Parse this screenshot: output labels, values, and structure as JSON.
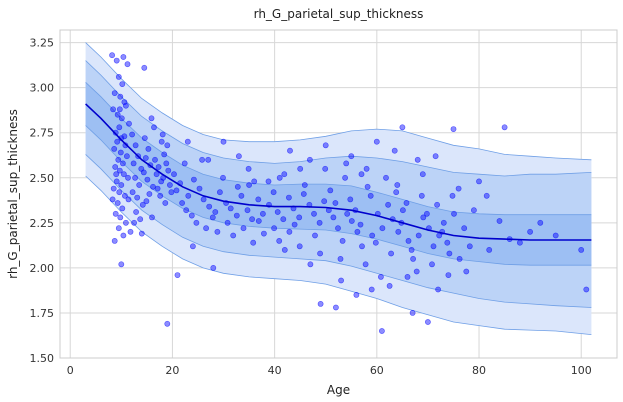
{
  "chart_data": {
    "type": "scatter",
    "title": "rh_G_parietal_sup_thickness",
    "xlabel": "Age",
    "ylabel": "rh_G_parietal_sup_thickness",
    "xlim": [
      -2,
      107
    ],
    "ylim": [
      1.5,
      3.32
    ],
    "x_ticks": [
      0,
      20,
      40,
      60,
      80,
      100
    ],
    "y_ticks": [
      1.5,
      1.75,
      2.0,
      2.25,
      2.5,
      2.75,
      3.0,
      3.25
    ],
    "y_tick_labels": [
      "1.50",
      "1.75",
      "2.00",
      "2.25",
      "2.50",
      "2.75",
      "3.00",
      "3.25"
    ],
    "grid": true,
    "colors": {
      "points": "#0000ff",
      "median_line": "#0000cc",
      "band_outer": "#dbe6fb",
      "band_middle": "#bcd3f7",
      "band_inner": "#9dbff3",
      "band_edge": "#6f9fe6"
    },
    "centile_curves": {
      "x": [
        3,
        6,
        10,
        14,
        18,
        22,
        26,
        30,
        35,
        40,
        45,
        50,
        55,
        60,
        65,
        70,
        75,
        80,
        85,
        90,
        95,
        102
      ],
      "p50": [
        2.91,
        2.83,
        2.71,
        2.6,
        2.52,
        2.45,
        2.4,
        2.37,
        2.35,
        2.34,
        2.34,
        2.335,
        2.32,
        2.29,
        2.25,
        2.21,
        2.18,
        2.165,
        2.16,
        2.155,
        2.155,
        2.155
      ],
      "p25": [
        2.79,
        2.71,
        2.59,
        2.48,
        2.4,
        2.33,
        2.28,
        2.25,
        2.23,
        2.22,
        2.215,
        2.21,
        2.19,
        2.16,
        2.12,
        2.08,
        2.05,
        2.035,
        2.02,
        2.015,
        2.015,
        2.015
      ],
      "p75": [
        3.03,
        2.95,
        2.83,
        2.72,
        2.64,
        2.57,
        2.52,
        2.49,
        2.47,
        2.46,
        2.465,
        2.465,
        2.455,
        2.42,
        2.38,
        2.34,
        2.31,
        2.3,
        2.295,
        2.295,
        2.295,
        2.295
      ],
      "p05": [
        2.63,
        2.55,
        2.43,
        2.32,
        2.24,
        2.17,
        2.12,
        2.09,
        2.07,
        2.06,
        2.05,
        2.04,
        2.01,
        1.97,
        1.93,
        1.89,
        1.86,
        1.83,
        1.81,
        1.8,
        1.79,
        1.78
      ],
      "p95": [
        3.15,
        3.07,
        2.95,
        2.84,
        2.76,
        2.69,
        2.64,
        2.61,
        2.59,
        2.58,
        2.59,
        2.61,
        2.62,
        2.61,
        2.59,
        2.56,
        2.53,
        2.52,
        2.51,
        2.52,
        2.52,
        2.53
      ],
      "p01": [
        2.51,
        2.43,
        2.31,
        2.2,
        2.12,
        2.05,
        2.0,
        1.97,
        1.95,
        1.94,
        1.93,
        1.91,
        1.87,
        1.83,
        1.78,
        1.74,
        1.7,
        1.68,
        1.66,
        1.655,
        1.65,
        1.63
      ],
      "p99": [
        3.25,
        3.17,
        3.05,
        2.94,
        2.86,
        2.79,
        2.74,
        2.71,
        2.7,
        2.7,
        2.71,
        2.73,
        2.76,
        2.77,
        2.76,
        2.72,
        2.68,
        2.66,
        2.63,
        2.62,
        2.61,
        2.6
      ]
    },
    "points": [
      [
        8.2,
        3.18
      ],
      [
        9.1,
        3.15
      ],
      [
        10.4,
        3.17
      ],
      [
        11.2,
        3.13
      ],
      [
        14.5,
        3.11
      ],
      [
        9.5,
        3.06
      ],
      [
        10.2,
        3.02
      ],
      [
        8.7,
        2.97
      ],
      [
        9.8,
        2.95
      ],
      [
        10.9,
        2.9
      ],
      [
        8.4,
        2.88
      ],
      [
        9.3,
        2.85
      ],
      [
        10.1,
        2.83
      ],
      [
        11.5,
        2.8
      ],
      [
        9.6,
        2.78
      ],
      [
        8.9,
        2.75
      ],
      [
        10.6,
        2.73
      ],
      [
        9.2,
        2.7
      ],
      [
        10.8,
        2.68
      ],
      [
        8.6,
        2.66
      ],
      [
        9.9,
        2.64
      ],
      [
        11.1,
        2.62
      ],
      [
        9.4,
        2.6
      ],
      [
        10.3,
        2.58
      ],
      [
        8.8,
        2.56
      ],
      [
        9.7,
        2.54
      ],
      [
        10.5,
        2.52
      ],
      [
        11.3,
        2.5
      ],
      [
        9.1,
        2.48
      ],
      [
        10.0,
        2.46
      ],
      [
        8.5,
        2.44
      ],
      [
        9.6,
        2.42
      ],
      [
        10.7,
        2.4
      ],
      [
        11.4,
        2.38
      ],
      [
        9.3,
        2.36
      ],
      [
        10.2,
        2.33
      ],
      [
        8.9,
        2.3
      ],
      [
        9.8,
        2.28
      ],
      [
        10.9,
        2.25
      ],
      [
        9.5,
        2.22
      ],
      [
        10.4,
        2.18
      ],
      [
        8.7,
        2.15
      ],
      [
        12.1,
        2.74
      ],
      [
        12.8,
        2.68
      ],
      [
        13.3,
        2.62
      ],
      [
        12.4,
        2.58
      ],
      [
        13.9,
        2.55
      ],
      [
        12.7,
        2.5
      ],
      [
        13.5,
        2.46
      ],
      [
        12.2,
        2.42
      ],
      [
        13.1,
        2.39
      ],
      [
        14.2,
        2.35
      ],
      [
        12.9,
        2.31
      ],
      [
        13.7,
        2.27
      ],
      [
        14.6,
        2.72
      ],
      [
        15.3,
        2.66
      ],
      [
        14.8,
        2.61
      ],
      [
        15.7,
        2.57
      ],
      [
        14.4,
        2.53
      ],
      [
        15.1,
        2.49
      ],
      [
        16.2,
        2.45
      ],
      [
        15.5,
        2.41
      ],
      [
        14.9,
        2.37
      ],
      [
        16.6,
        2.6
      ],
      [
        17.3,
        2.56
      ],
      [
        16.9,
        2.52
      ],
      [
        17.8,
        2.48
      ],
      [
        18.4,
        2.63
      ],
      [
        17.1,
        2.44
      ],
      [
        18.8,
        2.58
      ],
      [
        17.6,
        2.4
      ],
      [
        19.2,
        2.54
      ],
      [
        18.2,
        2.5
      ],
      [
        19.5,
        2.46
      ],
      [
        18.6,
        2.36
      ],
      [
        19.8,
        2.42
      ],
      [
        17.9,
        2.7
      ],
      [
        16.4,
        2.78
      ],
      [
        15.9,
        2.83
      ],
      [
        18.1,
        2.74
      ],
      [
        19.0,
        2.68
      ],
      [
        20.3,
        2.52
      ],
      [
        21.5,
        2.47
      ],
      [
        22.4,
        2.58
      ],
      [
        20.8,
        2.43
      ],
      [
        23.1,
        2.4
      ],
      [
        21.9,
        2.36
      ],
      [
        24.2,
        2.49
      ],
      [
        22.7,
        2.32
      ],
      [
        25.3,
        2.44
      ],
      [
        23.8,
        2.29
      ],
      [
        26.1,
        2.38
      ],
      [
        24.7,
        2.25
      ],
      [
        27.2,
        2.34
      ],
      [
        25.8,
        2.6
      ],
      [
        28.4,
        2.31
      ],
      [
        26.6,
        2.22
      ],
      [
        29.3,
        2.42
      ],
      [
        27.9,
        2.28
      ],
      [
        30.5,
        2.36
      ],
      [
        28.8,
        2.2
      ],
      [
        31.4,
        2.33
      ],
      [
        29.9,
        2.5
      ],
      [
        32.6,
        2.29
      ],
      [
        30.8,
        2.25
      ],
      [
        33.5,
        2.4
      ],
      [
        31.9,
        2.18
      ],
      [
        34.7,
        2.32
      ],
      [
        32.8,
        2.45
      ],
      [
        35.6,
        2.27
      ],
      [
        33.9,
        2.22
      ],
      [
        36.8,
        2.38
      ],
      [
        34.9,
        2.55
      ],
      [
        37.7,
        2.3
      ],
      [
        35.8,
        2.14
      ],
      [
        38.9,
        2.35
      ],
      [
        36.9,
        2.26
      ],
      [
        39.8,
        2.42
      ],
      [
        37.9,
        2.19
      ],
      [
        40.6,
        2.31
      ],
      [
        38.8,
        2.48
      ],
      [
        41.7,
        2.27
      ],
      [
        39.9,
        2.22
      ],
      [
        42.8,
        2.39
      ],
      [
        40.9,
        2.15
      ],
      [
        43.7,
        2.33
      ],
      [
        41.9,
        2.52
      ],
      [
        44.8,
        2.28
      ],
      [
        42.9,
        2.2
      ],
      [
        45.7,
        2.41
      ],
      [
        43.9,
        2.24
      ],
      [
        46.8,
        2.35
      ],
      [
        44.9,
        2.12
      ],
      [
        47.7,
        2.3
      ],
      [
        45.9,
        2.46
      ],
      [
        48.8,
        2.25
      ],
      [
        46.9,
        2.6
      ],
      [
        49.7,
        2.37
      ],
      [
        47.9,
        2.18
      ],
      [
        50.6,
        2.32
      ],
      [
        48.9,
        2.08
      ],
      [
        51.5,
        2.28
      ],
      [
        49.9,
        2.55
      ],
      [
        52.4,
        2.22
      ],
      [
        50.9,
        2.43
      ],
      [
        53.3,
        2.15
      ],
      [
        51.9,
        2.36
      ],
      [
        54.2,
        2.3
      ],
      [
        52.9,
        2.05
      ],
      [
        55.1,
        2.26
      ],
      [
        53.8,
        2.5
      ],
      [
        56.2,
        2.2
      ],
      [
        54.8,
        2.38
      ],
      [
        57.1,
        2.12
      ],
      [
        55.8,
        2.32
      ],
      [
        58.2,
        2.45
      ],
      [
        56.8,
        2.24
      ],
      [
        59.1,
        2.18
      ],
      [
        57.8,
        2.02
      ],
      [
        60.2,
        2.3
      ],
      [
        58.8,
        2.4
      ],
      [
        61.1,
        2.22
      ],
      [
        59.8,
        2.14
      ],
      [
        62.2,
        2.35
      ],
      [
        60.8,
        1.95
      ],
      [
        63.1,
        2.27
      ],
      [
        61.8,
        2.5
      ],
      [
        64.2,
        2.2
      ],
      [
        62.8,
        2.08
      ],
      [
        65.1,
        2.32
      ],
      [
        63.8,
        2.42
      ],
      [
        66.2,
        2.15
      ],
      [
        64.8,
        2.25
      ],
      [
        67.1,
        2.05
      ],
      [
        65.8,
        2.36
      ],
      [
        68.2,
        2.18
      ],
      [
        66.8,
        2.1
      ],
      [
        69.1,
        2.28
      ],
      [
        67.8,
        1.98
      ],
      [
        70.2,
        2.22
      ],
      [
        68.8,
        2.4
      ],
      [
        71.1,
        2.12
      ],
      [
        69.8,
        2.3
      ],
      [
        72.2,
        2.18
      ],
      [
        70.8,
        2.02
      ],
      [
        73.1,
        2.25
      ],
      [
        71.8,
        2.35
      ],
      [
        74.2,
        2.08
      ],
      [
        72.8,
        2.2
      ],
      [
        75.1,
        2.3
      ],
      [
        73.8,
        2.14
      ],
      [
        76.2,
        2.05
      ],
      [
        74.8,
        2.4
      ],
      [
        77.1,
        2.22
      ],
      [
        78.2,
        2.12
      ],
      [
        80.0,
        2.48
      ],
      [
        81.5,
        2.4
      ],
      [
        82.0,
        2.1
      ],
      [
        88.0,
        2.14
      ],
      [
        90.0,
        2.2
      ],
      [
        100.0,
        2.1
      ],
      [
        101.0,
        1.88
      ],
      [
        85.0,
        2.78
      ],
      [
        75.0,
        2.77
      ],
      [
        65.0,
        2.78
      ],
      [
        63.5,
        2.65
      ],
      [
        19.0,
        1.69
      ],
      [
        28.0,
        2.0
      ],
      [
        49.0,
        1.8
      ],
      [
        56.0,
        1.85
      ],
      [
        61.0,
        1.65
      ],
      [
        62.5,
        1.9
      ],
      [
        67.0,
        1.75
      ],
      [
        70.0,
        1.7
      ],
      [
        52.0,
        1.78
      ],
      [
        10.0,
        2.02
      ],
      [
        60.0,
        2.7
      ],
      [
        55.0,
        2.62
      ],
      [
        45.0,
        2.55
      ],
      [
        33.0,
        2.62
      ],
      [
        36.0,
        2.48
      ],
      [
        41.0,
        2.5
      ],
      [
        58.0,
        2.55
      ],
      [
        64.0,
        2.46
      ],
      [
        69.0,
        2.52
      ],
      [
        71.5,
        2.62
      ],
      [
        76.0,
        2.44
      ],
      [
        79.0,
        2.32
      ],
      [
        84.0,
        2.26
      ],
      [
        86.0,
        2.16
      ],
      [
        92.0,
        2.25
      ],
      [
        95.0,
        2.18
      ],
      [
        23.0,
        2.7
      ],
      [
        27.0,
        2.6
      ],
      [
        30.0,
        2.7
      ],
      [
        35.0,
        2.46
      ],
      [
        42.0,
        2.1
      ],
      [
        47.0,
        2.02
      ],
      [
        53.0,
        1.93
      ],
      [
        59.0,
        1.88
      ],
      [
        66.0,
        1.95
      ],
      [
        68.0,
        2.6
      ],
      [
        72.0,
        1.88
      ],
      [
        74.0,
        1.96
      ],
      [
        77.5,
        1.98
      ],
      [
        43.0,
        2.65
      ],
      [
        50.0,
        2.68
      ],
      [
        54.0,
        2.58
      ],
      [
        57.0,
        2.52
      ],
      [
        24.0,
        2.12
      ],
      [
        21.0,
        1.96
      ],
      [
        14.0,
        2.19
      ],
      [
        16.0,
        2.28
      ],
      [
        12.5,
        2.25
      ],
      [
        11.8,
        2.2
      ],
      [
        8.3,
        2.38
      ],
      [
        9.0,
        2.52
      ],
      [
        10.0,
        2.72
      ],
      [
        9.7,
        2.88
      ],
      [
        10.6,
        2.92
      ]
    ]
  }
}
